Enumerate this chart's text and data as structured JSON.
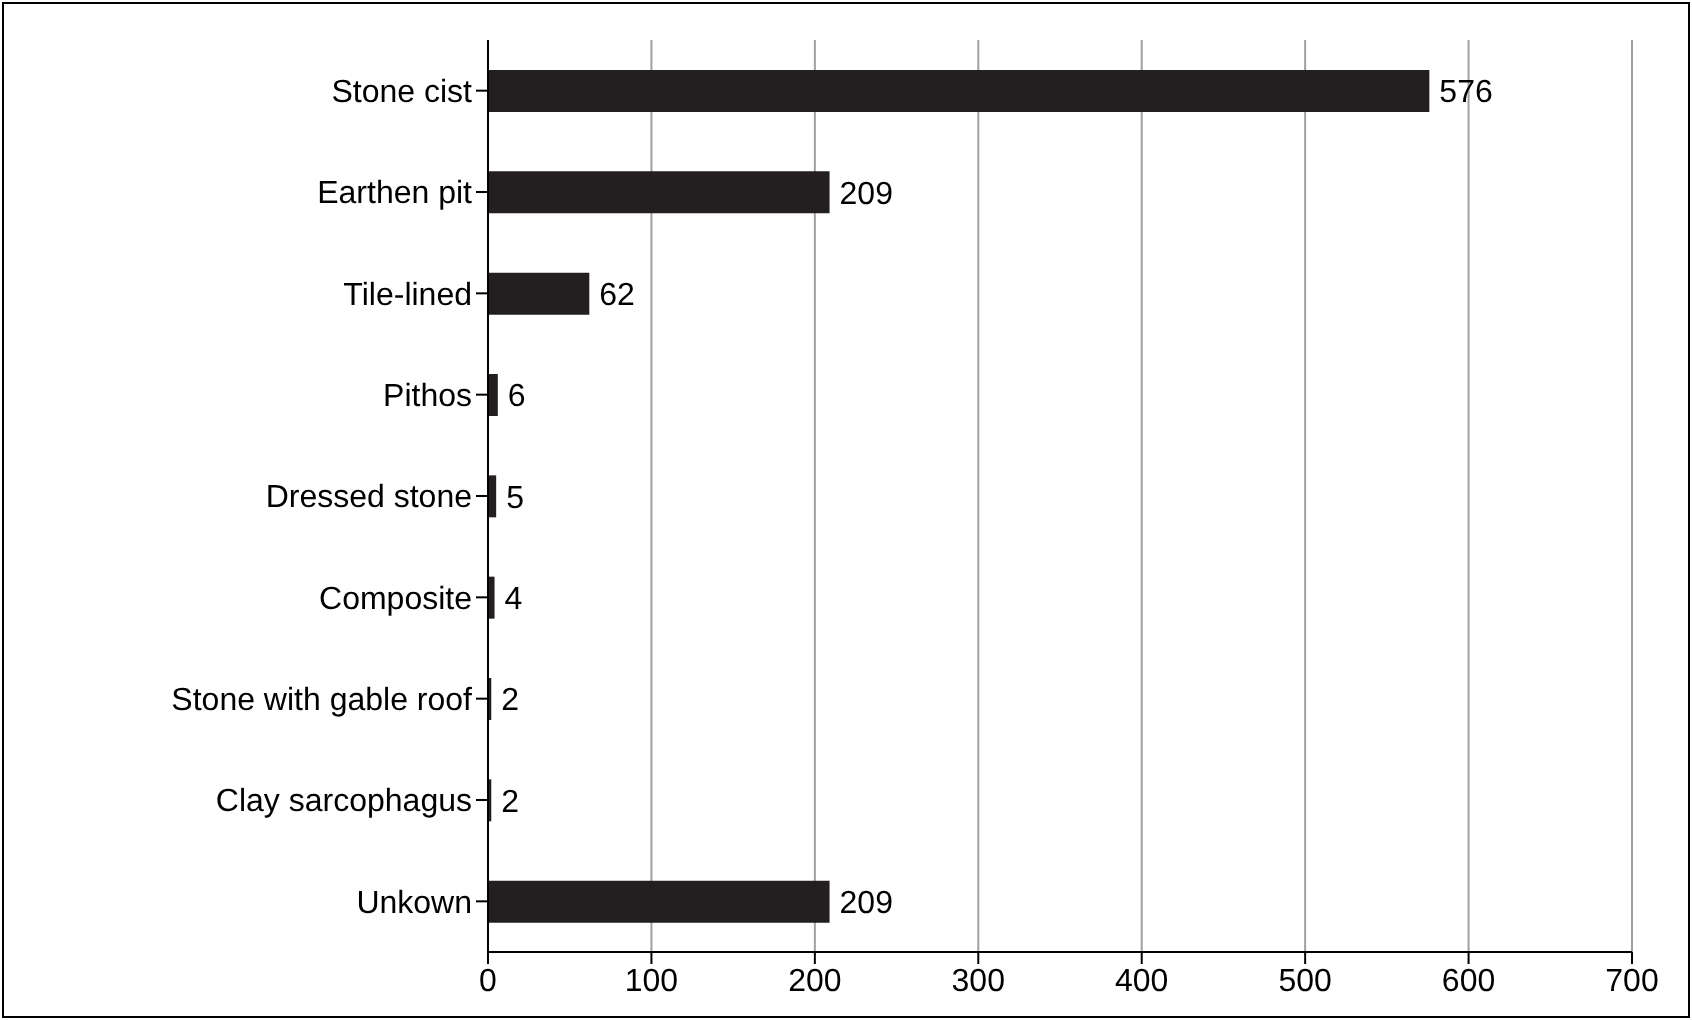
{
  "chart_data": {
    "type": "bar",
    "orientation": "horizontal",
    "categories": [
      "Stone cist",
      "Earthen pit",
      "Tile-lined",
      "Pithos",
      "Dressed stone",
      "Composite",
      "Stone with gable roof",
      "Clay sarcophagus",
      "Unkown"
    ],
    "values": [
      576,
      209,
      62,
      6,
      5,
      4,
      2,
      2,
      209
    ],
    "color": "#231f20",
    "xlim": [
      0,
      700
    ],
    "xticks": [
      0,
      100,
      200,
      300,
      400,
      500,
      600,
      700
    ],
    "grid": "x",
    "data_labels": true
  }
}
